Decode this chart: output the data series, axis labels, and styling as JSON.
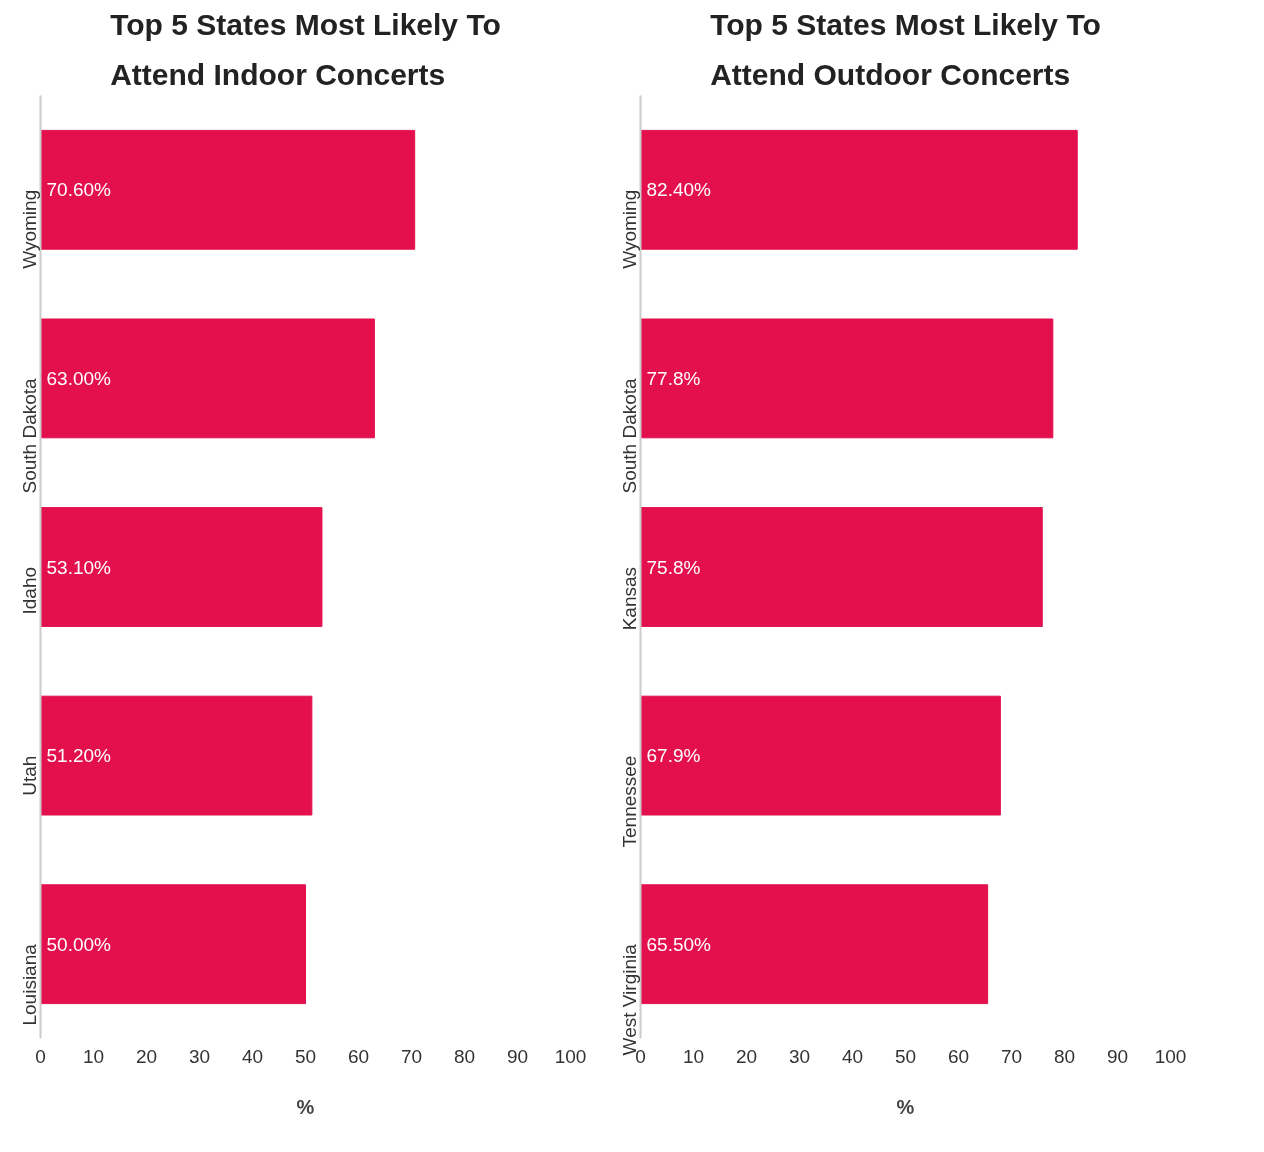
{
  "chart_data": [
    {
      "type": "bar",
      "orientation": "horizontal",
      "title": "Top 5 States Most Likely To Attend Indoor Concerts",
      "xlabel": "%",
      "categories": [
        "Wyoming",
        "South Dakota",
        "Idaho",
        "Utah",
        "Louisiana"
      ],
      "values": [
        70.6,
        63.0,
        53.1,
        51.2,
        50.0
      ],
      "value_labels": [
        "70.60%",
        "63.00%",
        "53.10%",
        "51.20%",
        "50.00%"
      ],
      "color": "#e3104d",
      "xlim": [
        0,
        100
      ],
      "xticks": [
        0,
        10,
        20,
        30,
        40,
        50,
        60,
        70,
        80,
        90,
        100
      ]
    },
    {
      "type": "bar",
      "orientation": "horizontal",
      "title": "Top 5 States Most Likely To Attend Outdoor Concerts",
      "xlabel": "%",
      "categories": [
        "Wyoming",
        "South Dakota",
        "Kansas",
        "Tennessee",
        "West Virginia"
      ],
      "values": [
        82.4,
        77.8,
        75.8,
        67.9,
        65.5
      ],
      "value_labels": [
        "82.40%",
        "77.8%",
        "75.8%",
        "67.9%",
        "65.50%"
      ],
      "color": "#e3104d",
      "xlim": [
        0,
        100
      ],
      "xticks": [
        0,
        10,
        20,
        30,
        40,
        50,
        60,
        70,
        80,
        90,
        100
      ]
    }
  ]
}
